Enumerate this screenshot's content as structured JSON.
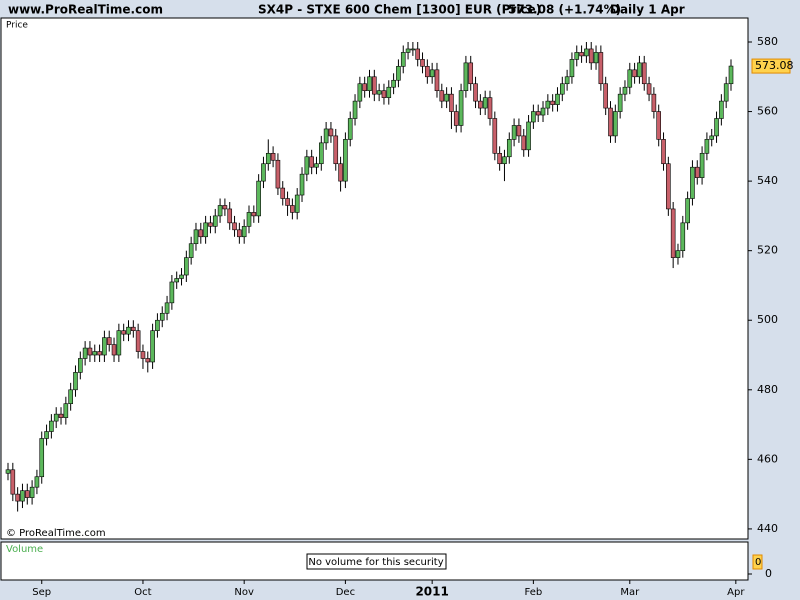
{
  "header": {
    "site": "www.ProRealTime.com",
    "instrument": "SX4P - STXE 600 Chem [1300] EUR (Price)",
    "quote": "573.08 (+1.74%)",
    "period": "Daily  1 Apr"
  },
  "chart_data": {
    "type": "candlestick",
    "panel_label": "Price",
    "copyright": "© ProRealTime.com",
    "up_color": "#5cb85c",
    "down_color": "#c8606a",
    "open": [
      456,
      457,
      450,
      448,
      451,
      449,
      452,
      455,
      466,
      468,
      471,
      473,
      472,
      476,
      480,
      485,
      489,
      492,
      490,
      491,
      490,
      495,
      493,
      490,
      497,
      496,
      498,
      497,
      491,
      489,
      488,
      497,
      500,
      502,
      505,
      511,
      512,
      513,
      518,
      522,
      526,
      524,
      528,
      527,
      530,
      533,
      532,
      528,
      526,
      524,
      527,
      531,
      530,
      540,
      545,
      548,
      546,
      538,
      535,
      533,
      531,
      536,
      542,
      547,
      544,
      545,
      551,
      555,
      553,
      545,
      540,
      552,
      558,
      563,
      568,
      566,
      570,
      565,
      566,
      564,
      567,
      569,
      573,
      577,
      578,
      578,
      575,
      573,
      570,
      572,
      566,
      563,
      565,
      560,
      556,
      566,
      574,
      568,
      563,
      561,
      564,
      558,
      548,
      545,
      547,
      552,
      556,
      553,
      549,
      557,
      560,
      559,
      561,
      563,
      562,
      565,
      568,
      570,
      575,
      577,
      576,
      578,
      574,
      577,
      568,
      561,
      553,
      560,
      565,
      567,
      572,
      570,
      574,
      568,
      565,
      560,
      552,
      545,
      532,
      518,
      520,
      528,
      535,
      544,
      541,
      548,
      552,
      553,
      558,
      563,
      568
    ],
    "high": [
      459,
      459,
      452,
      453,
      453,
      454,
      457,
      468,
      470,
      473,
      475,
      475,
      478,
      482,
      487,
      491,
      494,
      494,
      493,
      493,
      497,
      497,
      495,
      499,
      499,
      500,
      500,
      499,
      493,
      491,
      499,
      502,
      504,
      507,
      513,
      514,
      515,
      520,
      524,
      528,
      528,
      530,
      530,
      532,
      535,
      535,
      534,
      530,
      528,
      529,
      533,
      533,
      542,
      547,
      552,
      550,
      548,
      540,
      537,
      535,
      538,
      544,
      549,
      549,
      547,
      553,
      557,
      557,
      555,
      547,
      554,
      560,
      565,
      570,
      570,
      572,
      572,
      568,
      568,
      569,
      571,
      575,
      579,
      580,
      580,
      580,
      577,
      575,
      574,
      574,
      568,
      567,
      567,
      562,
      568,
      576,
      576,
      570,
      565,
      566,
      566,
      560,
      550,
      549,
      554,
      558,
      558,
      555,
      559,
      562,
      562,
      563,
      565,
      565,
      567,
      570,
      572,
      577,
      579,
      579,
      580,
      580,
      579,
      579,
      570,
      563,
      562,
      567,
      569,
      574,
      574,
      576,
      576,
      570,
      567,
      562,
      554,
      547,
      534,
      522,
      530,
      537,
      546,
      546,
      550,
      554,
      555,
      560,
      565,
      570,
      575
    ],
    "low": [
      454,
      448,
      445,
      446,
      447,
      447,
      450,
      453,
      464,
      466,
      469,
      470,
      470,
      474,
      478,
      483,
      487,
      488,
      488,
      488,
      488,
      491,
      488,
      488,
      494,
      494,
      495,
      489,
      486,
      485,
      486,
      495,
      498,
      500,
      503,
      509,
      510,
      511,
      516,
      520,
      522,
      522,
      525,
      525,
      528,
      530,
      526,
      524,
      522,
      522,
      525,
      528,
      528,
      538,
      543,
      544,
      536,
      533,
      530,
      529,
      529,
      534,
      540,
      542,
      542,
      543,
      549,
      551,
      543,
      537,
      538,
      550,
      556,
      561,
      564,
      564,
      563,
      563,
      562,
      562,
      565,
      567,
      571,
      575,
      576,
      573,
      571,
      568,
      568,
      564,
      561,
      561,
      555,
      554,
      554,
      564,
      566,
      561,
      559,
      559,
      556,
      546,
      543,
      540,
      545,
      550,
      551,
      547,
      547,
      555,
      557,
      557,
      559,
      560,
      560,
      563,
      566,
      568,
      573,
      574,
      574,
      572,
      572,
      566,
      559,
      551,
      551,
      558,
      563,
      565,
      568,
      568,
      566,
      563,
      558,
      550,
      543,
      530,
      515,
      516,
      518,
      526,
      533,
      539,
      539,
      546,
      550,
      551,
      556,
      561,
      566
    ],
    "close": [
      457,
      450,
      448,
      451,
      449,
      452,
      455,
      466,
      468,
      471,
      473,
      472,
      476,
      480,
      485,
      489,
      492,
      490,
      491,
      490,
      495,
      493,
      490,
      497,
      496,
      498,
      497,
      491,
      489,
      488,
      497,
      500,
      502,
      505,
      511,
      512,
      513,
      518,
      522,
      526,
      524,
      528,
      527,
      530,
      533,
      532,
      528,
      526,
      524,
      527,
      531,
      530,
      540,
      545,
      548,
      546,
      538,
      535,
      533,
      531,
      536,
      542,
      547,
      544,
      545,
      551,
      555,
      553,
      545,
      540,
      552,
      558,
      563,
      568,
      566,
      570,
      565,
      566,
      564,
      567,
      569,
      573,
      577,
      578,
      578,
      575,
      573,
      570,
      572,
      566,
      563,
      565,
      560,
      556,
      566,
      574,
      568,
      563,
      561,
      564,
      558,
      548,
      545,
      547,
      552,
      556,
      553,
      549,
      557,
      560,
      559,
      561,
      563,
      562,
      565,
      568,
      570,
      575,
      577,
      576,
      578,
      574,
      577,
      568,
      561,
      553,
      560,
      565,
      567,
      572,
      570,
      574,
      568,
      565,
      560,
      552,
      545,
      532,
      518,
      520,
      528,
      535,
      544,
      541,
      548,
      552,
      553,
      558,
      563,
      568,
      573.08
    ],
    "ylim": [
      437.1,
      586.9
    ],
    "yticks": [
      440,
      460,
      480,
      500,
      520,
      540,
      560,
      580
    ],
    "xticks": [
      {
        "value": 7,
        "label": "Sep"
      },
      {
        "value": 28,
        "label": "Oct"
      },
      {
        "value": 49,
        "label": "Nov"
      },
      {
        "value": 70,
        "label": "Dec"
      },
      {
        "value": 88,
        "label": "2011"
      },
      {
        "value": 109,
        "label": "Feb"
      },
      {
        "value": 129,
        "label": "Mar"
      },
      {
        "value": 151,
        "label": "Apr"
      }
    ],
    "volume": {
      "label": "Volume",
      "message": "No volume for this security",
      "yticks": [
        0
      ],
      "last_value": 0
    }
  }
}
